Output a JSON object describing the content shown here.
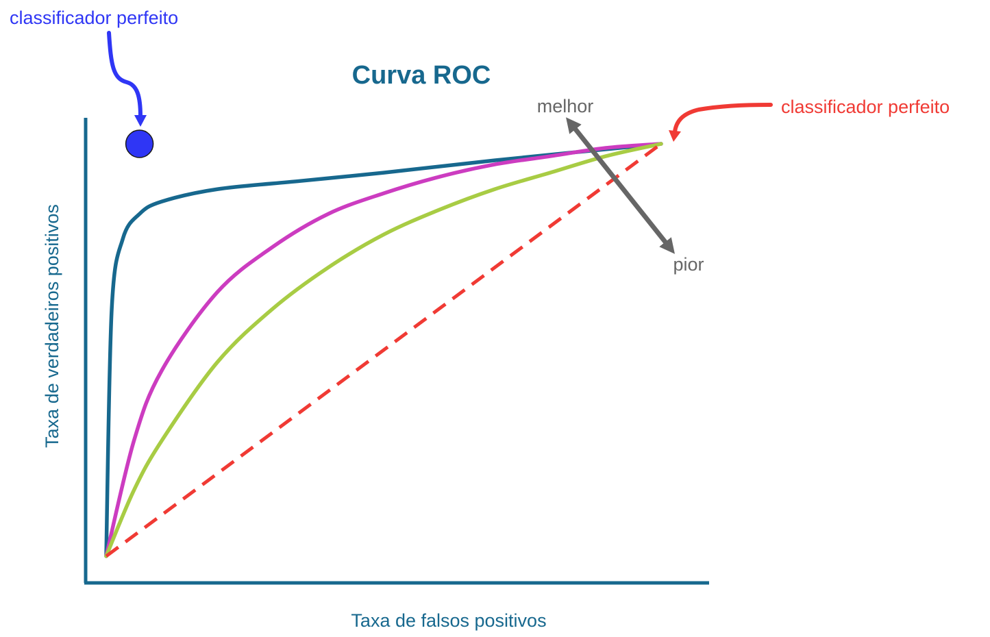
{
  "chart_data": {
    "type": "line",
    "title": "Curva ROC",
    "xlabel": "Taxa de falsos positivos",
    "ylabel": "Taxa de verdadeiros positivos",
    "xlim": [
      0,
      1
    ],
    "ylim": [
      0,
      1
    ],
    "grid": false,
    "series": [
      {
        "color": "#17688e",
        "x": [
          0,
          0.01,
          0.03,
          0.06,
          0.1,
          0.2,
          0.35,
          0.5,
          0.7,
          1.0
        ],
        "y": [
          0,
          0.6,
          0.77,
          0.83,
          0.86,
          0.89,
          0.91,
          0.93,
          0.96,
          1.0
        ]
      },
      {
        "color": "#cc3cc0",
        "x": [
          0,
          0.05,
          0.1,
          0.2,
          0.3,
          0.4,
          0.5,
          0.6,
          0.7,
          0.8,
          0.9,
          1.0
        ],
        "y": [
          0,
          0.28,
          0.45,
          0.64,
          0.75,
          0.83,
          0.88,
          0.92,
          0.95,
          0.97,
          0.99,
          1.0
        ]
      },
      {
        "color": "#a8cc44",
        "x": [
          0,
          0.05,
          0.1,
          0.2,
          0.3,
          0.4,
          0.5,
          0.6,
          0.7,
          0.8,
          0.9,
          1.0
        ],
        "y": [
          0,
          0.16,
          0.28,
          0.47,
          0.6,
          0.7,
          0.78,
          0.84,
          0.89,
          0.93,
          0.97,
          1.0
        ]
      },
      {
        "color": "#f03a34",
        "style": "dashed",
        "x": [
          0,
          1
        ],
        "y": [
          0,
          1
        ]
      }
    ],
    "points": [
      {
        "x": 0.06,
        "y": 1.0,
        "color": "#2f36f5"
      }
    ],
    "annotations": {
      "perfect_left": "classificador perfeito",
      "perfect_right": "classificador perfeito",
      "better": "melhor",
      "worse": "pior"
    },
    "colors": {
      "axis": "#17688e",
      "title": "#17688e",
      "blue_note": "#2f36f5",
      "red_note": "#f03a34",
      "arrow": "#666666"
    }
  }
}
